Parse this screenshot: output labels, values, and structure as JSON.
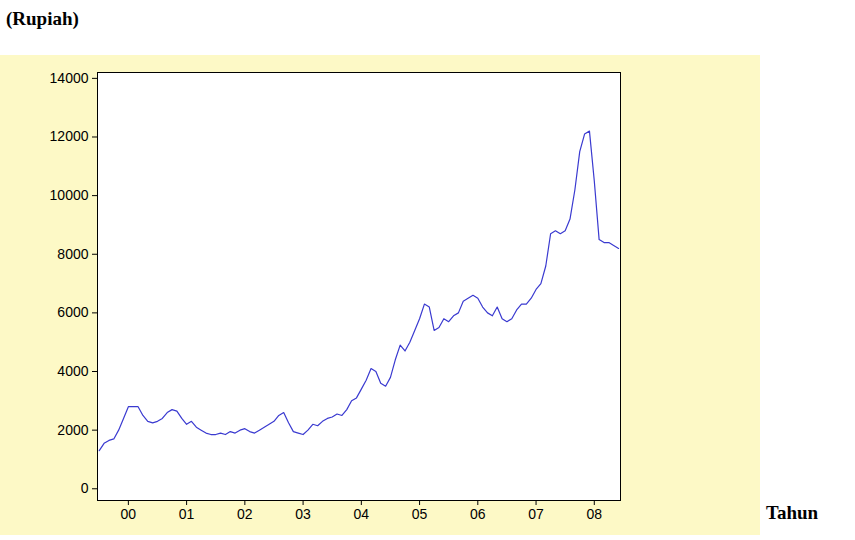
{
  "chart_data": {
    "type": "line",
    "title": "(Rupiah)",
    "x_label": "Tahun",
    "x": [
      2000,
      2000.083,
      2000.167,
      2000.25,
      2000.333,
      2000.417,
      2000.5,
      2000.583,
      2000.667,
      2000.75,
      2000.833,
      2000.917,
      2001,
      2001.083,
      2001.167,
      2001.25,
      2001.333,
      2001.417,
      2001.5,
      2001.583,
      2001.667,
      2001.75,
      2001.833,
      2001.917,
      2002,
      2002.083,
      2002.167,
      2002.25,
      2002.333,
      2002.417,
      2002.5,
      2002.583,
      2002.667,
      2002.75,
      2002.833,
      2002.917,
      2003,
      2003.083,
      2003.167,
      2003.25,
      2003.333,
      2003.417,
      2003.5,
      2003.583,
      2003.667,
      2003.75,
      2003.833,
      2003.917,
      2004,
      2004.083,
      2004.167,
      2004.25,
      2004.333,
      2004.417,
      2004.5,
      2004.583,
      2004.667,
      2004.75,
      2004.833,
      2004.917,
      2005,
      2005.083,
      2005.167,
      2005.25,
      2005.333,
      2005.417,
      2005.5,
      2005.583,
      2005.667,
      2005.75,
      2005.833,
      2005.917,
      2006,
      2006.083,
      2006.167,
      2006.25,
      2006.333,
      2006.417,
      2006.5,
      2006.583,
      2006.667,
      2006.75,
      2006.833,
      2006.917,
      2007,
      2007.083,
      2007.167,
      2007.25,
      2007.333,
      2007.417,
      2007.5,
      2007.583,
      2007.667,
      2007.75,
      2007.833,
      2007.917,
      2008,
      2008.083,
      2008.167,
      2008.25,
      2008.333,
      2008.417,
      2008.5,
      2008.583,
      2008.667,
      2008.75,
      2008.833,
      2008.917
    ],
    "values": [
      1300,
      1550,
      1650,
      1700,
      2000,
      2400,
      2800,
      2800,
      2800,
      2500,
      2300,
      2250,
      2300,
      2400,
      2600,
      2700,
      2650,
      2400,
      2200,
      2300,
      2100,
      2000,
      1900,
      1850,
      1850,
      1900,
      1850,
      1950,
      1900,
      2000,
      2050,
      1950,
      1900,
      2000,
      2100,
      2200,
      2300,
      2500,
      2600,
      2250,
      1950,
      1900,
      1850,
      2000,
      2200,
      2150,
      2300,
      2400,
      2450,
      2550,
      2500,
      2700,
      3000,
      3100,
      3400,
      3700,
      4100,
      4000,
      3600,
      3500,
      3800,
      4400,
      4900,
      4700,
      5000,
      5400,
      5800,
      6300,
      6200,
      5400,
      5500,
      5800,
      5700,
      5900,
      6000,
      6400,
      6500,
      6600,
      6500,
      6200,
      6000,
      5900,
      6200,
      5800,
      5700,
      5800,
      6100,
      6300,
      6300,
      6500,
      6800,
      7000,
      7600,
      8700,
      8800,
      8700,
      8800,
      9200,
      10200,
      11500,
      12100,
      12200,
      10500,
      8500,
      8400,
      8400,
      8300,
      8200
    ],
    "color": "#3a3ad0",
    "xlim": [
      1999.97,
      2008.95
    ],
    "xticks": [
      {
        "value": 2000.5,
        "label": "00"
      },
      {
        "value": 2001.5,
        "label": "01"
      },
      {
        "value": 2002.5,
        "label": "02"
      },
      {
        "value": 2003.5,
        "label": "03"
      },
      {
        "value": 2004.5,
        "label": "04"
      },
      {
        "value": 2005.5,
        "label": "05"
      },
      {
        "value": 2006.5,
        "label": "06"
      },
      {
        "value": 2007.5,
        "label": "07"
      },
      {
        "value": 2008.5,
        "label": "08"
      }
    ],
    "ylim": [
      -400,
      14200
    ],
    "yticks": [
      0,
      2000,
      4000,
      6000,
      8000,
      10000,
      12000,
      14000
    ],
    "grid": false
  }
}
